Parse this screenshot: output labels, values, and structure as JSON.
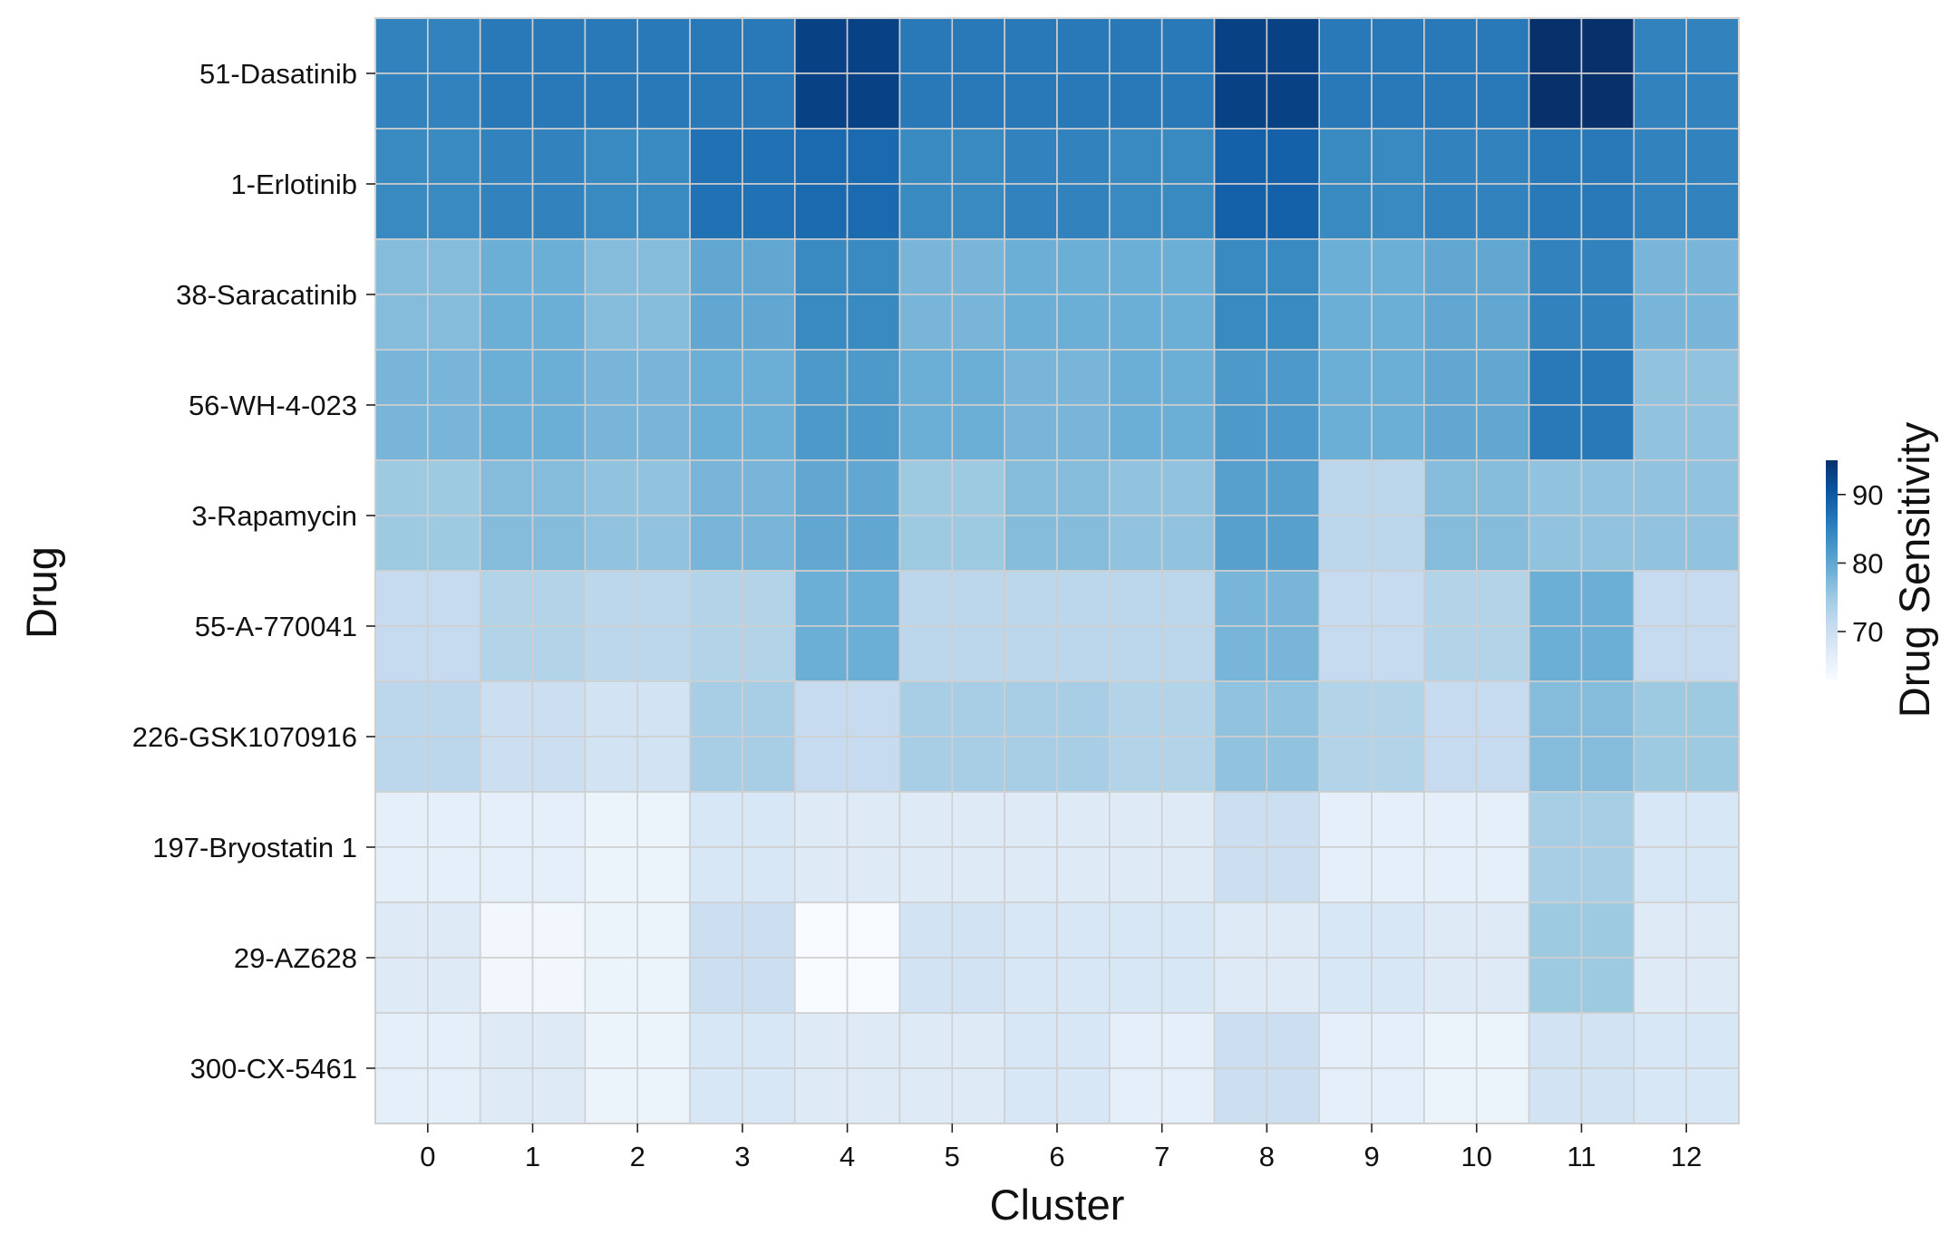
{
  "chart_data": {
    "type": "heatmap",
    "xlabel": "Cluster",
    "ylabel": "Drug",
    "categories": [
      "0",
      "1",
      "2",
      "3",
      "4",
      "5",
      "6",
      "7",
      "8",
      "9",
      "10",
      "11",
      "12"
    ],
    "rows": [
      "51-Dasatinib",
      "1-Erlotinib",
      "38-Saracatinib",
      "56-WH-4-023",
      "3-Rapamycin",
      "55-A-770041",
      "226-GSK1070916",
      "197-Bryostatin 1",
      "29-AZ628",
      "300-CX-5461"
    ],
    "values": [
      [
        85,
        86,
        86,
        86,
        93,
        86,
        86,
        86,
        93,
        86,
        86,
        95,
        85
      ],
      [
        84,
        85,
        84,
        87,
        88,
        84,
        85,
        84,
        89,
        84,
        85,
        86,
        85
      ],
      [
        77,
        79,
        77,
        80,
        84,
        78,
        79,
        79,
        84,
        79,
        80,
        85,
        78
      ],
      [
        78,
        79,
        78,
        79,
        82,
        79,
        78,
        79,
        82,
        79,
        80,
        86,
        76
      ],
      [
        75,
        77,
        76,
        78,
        80,
        75,
        77,
        76,
        81,
        72,
        77,
        76,
        76
      ],
      [
        71,
        73,
        72,
        73,
        79,
        72,
        72,
        72,
        78,
        71,
        73,
        79,
        71
      ],
      [
        72,
        70,
        69,
        74,
        71,
        74,
        74,
        73,
        76,
        73,
        71,
        77,
        75
      ],
      [
        66,
        66,
        65,
        68,
        67,
        67,
        67,
        67,
        70,
        66,
        66,
        74,
        68
      ],
      [
        67,
        64,
        65,
        70,
        63,
        69,
        68,
        68,
        67,
        68,
        67,
        75,
        67
      ],
      [
        66,
        67,
        65,
        68,
        67,
        67,
        68,
        66,
        70,
        66,
        65,
        69,
        68
      ]
    ],
    "colorbar": {
      "label": "Drug Sensitivity",
      "ticks": [
        70,
        80,
        90
      ],
      "range": [
        63,
        95
      ],
      "colormap": "Blues"
    },
    "grid": true
  }
}
